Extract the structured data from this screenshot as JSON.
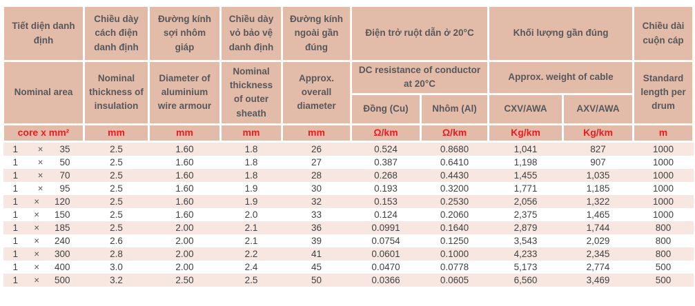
{
  "colors": {
    "header-bg": "#e2bba9",
    "stripe-bg": "#f8e7e0",
    "unit-red": "#ed1c24",
    "header-text": "#57585b",
    "body-text": "#414042"
  },
  "table": {
    "times_sign": "×",
    "header_vi": [
      "Tiết diện danh định",
      "Chiều dày cách điện danh định",
      "Đường kính sợi nhôm giáp",
      "Chiều dày vỏ bảo vệ danh định",
      "Đường kính ngoài gần đúng",
      "Điện trở ruột dẫn ở 20°C",
      "Khối lượng gần đúng",
      "Chiều dài cuộn cáp"
    ],
    "header_en": [
      "Nominal area",
      "Nominal thickness of insulation",
      "Diameter of aluminium wire armour",
      "Nominal thickness of outer sheath",
      "Approx. overall diameter",
      "DC resistance of conductor at 20°C",
      "Approx. weight of cable",
      "Standard length per drum"
    ],
    "subheaders": [
      "Đồng (Cu)",
      "Nhôm (Al)",
      "CXV/AWA",
      "AXV/AWA"
    ],
    "units": [
      "core x mm²",
      "mm",
      "mm",
      "mm",
      "mm",
      "Ω/km",
      "Ω/km",
      "Kg/km",
      "Kg/km",
      "m"
    ],
    "rows": [
      {
        "cores": "1",
        "size": "35",
        "insulation": "2.5",
        "armour": "1.60",
        "sheath": "1.8",
        "diameter": "26",
        "res_cu": "0.524",
        "res_al": "0.8680",
        "w_cxv": "1,041",
        "w_axv": "827",
        "length": "1000"
      },
      {
        "cores": "1",
        "size": "50",
        "insulation": "2.5",
        "armour": "1.60",
        "sheath": "1.8",
        "diameter": "27",
        "res_cu": "0.387",
        "res_al": "0.6410",
        "w_cxv": "1,198",
        "w_axv": "907",
        "length": "1000"
      },
      {
        "cores": "1",
        "size": "70",
        "insulation": "2.5",
        "armour": "1.60",
        "sheath": "1.8",
        "diameter": "28",
        "res_cu": "0.268",
        "res_al": "0.4430",
        "w_cxv": "1,455",
        "w_axv": "1,035",
        "length": "1000"
      },
      {
        "cores": "1",
        "size": "95",
        "insulation": "2.5",
        "armour": "1.60",
        "sheath": "1.9",
        "diameter": "30",
        "res_cu": "0.193",
        "res_al": "0.3200",
        "w_cxv": "1,771",
        "w_axv": "1,185",
        "length": "1000"
      },
      {
        "cores": "1",
        "size": "120",
        "insulation": "2.5",
        "armour": "1.60",
        "sheath": "1.9",
        "diameter": "32",
        "res_cu": "0.153",
        "res_al": "0.2530",
        "w_cxv": "2,056",
        "w_axv": "1,322",
        "length": "1000"
      },
      {
        "cores": "1",
        "size": "150",
        "insulation": "2.5",
        "armour": "1.60",
        "sheath": "2.0",
        "diameter": "33",
        "res_cu": "0.124",
        "res_al": "0.2060",
        "w_cxv": "2,375",
        "w_axv": "1,465",
        "length": "1000"
      },
      {
        "cores": "1",
        "size": "185",
        "insulation": "2.5",
        "armour": "2.00",
        "sheath": "2.1",
        "diameter": "36",
        "res_cu": "0.0991",
        "res_al": "0.1640",
        "w_cxv": "2,879",
        "w_axv": "1,744",
        "length": "800"
      },
      {
        "cores": "1",
        "size": "240",
        "insulation": "2.6",
        "armour": "2.00",
        "sheath": "2.1",
        "diameter": "39",
        "res_cu": "0.0754",
        "res_al": "0.1250",
        "w_cxv": "3,543",
        "w_axv": "2,029",
        "length": "800"
      },
      {
        "cores": "1",
        "size": "300",
        "insulation": "2.8",
        "armour": "2.00",
        "sheath": "2.2",
        "diameter": "41",
        "res_cu": "0.0601",
        "res_al": "0.1000",
        "w_cxv": "4,233",
        "w_axv": "2,345",
        "length": "800"
      },
      {
        "cores": "1",
        "size": "400",
        "insulation": "3.0",
        "armour": "2.00",
        "sheath": "2.4",
        "diameter": "45",
        "res_cu": "0.0470",
        "res_al": "0.0778",
        "w_cxv": "5,173",
        "w_axv": "2,774",
        "length": "500"
      },
      {
        "cores": "1",
        "size": "500",
        "insulation": "3.2",
        "armour": "2.50",
        "sheath": "2.5",
        "diameter": "50",
        "res_cu": "0.0366",
        "res_al": "0.0605",
        "w_cxv": "6,560",
        "w_axv": "3,469",
        "length": "500"
      }
    ]
  }
}
